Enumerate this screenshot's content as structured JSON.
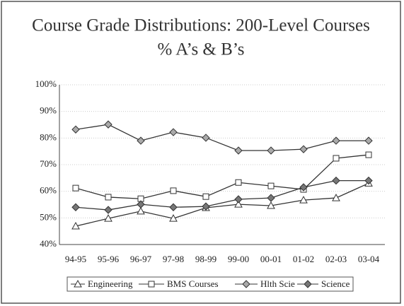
{
  "chart_data": {
    "type": "line",
    "title": "Course Grade Distributions: 200-Level Courses",
    "subtitle": "% A’s & B’s",
    "categories": [
      "94-95",
      "95-96",
      "96-97",
      "97-98",
      "98-99",
      "99-00",
      "00-01",
      "01-02",
      "02-03",
      "03-04"
    ],
    "series": [
      {
        "name": "Engineering",
        "color": "#333333",
        "marker": "triangle",
        "marker_fill": "#ffffff",
        "values": [
          46.9,
          49.8,
          52.5,
          49.8,
          53.8,
          55.1,
          54.6,
          56.7,
          57.5,
          63
        ]
      },
      {
        "name": "BMS Courses",
        "color": "#333333",
        "marker": "square",
        "marker_fill": "#ffffff",
        "values": [
          61.2,
          57.8,
          57.2,
          60.2,
          58,
          63.3,
          62,
          60.7,
          72.4,
          73.7
        ]
      },
      {
        "name": "Hlth Scie",
        "color": "#333333",
        "marker": "diamond",
        "marker_fill": "#aaaaaa",
        "values": [
          83.2,
          85.1,
          79,
          82.2,
          80.1,
          75.3,
          75.3,
          75.8,
          79,
          79
        ]
      },
      {
        "name": "Science",
        "color": "#333333",
        "marker": "diamond",
        "marker_fill": "#777777",
        "values": [
          54,
          53,
          55.1,
          54,
          54.3,
          57,
          57.5,
          61.5,
          64,
          64
        ]
      }
    ],
    "ylim": [
      40,
      100
    ],
    "yticks": [
      {
        "value": 40,
        "label": "40%"
      },
      {
        "value": 50,
        "label": "50%"
      },
      {
        "value": 60,
        "label": "60%"
      },
      {
        "value": 70,
        "label": "70%"
      },
      {
        "value": 80,
        "label": "80%"
      },
      {
        "value": 90,
        "label": "90%"
      },
      {
        "value": 100,
        "label": "100%"
      }
    ],
    "grid": true,
    "legend": "bottom"
  }
}
